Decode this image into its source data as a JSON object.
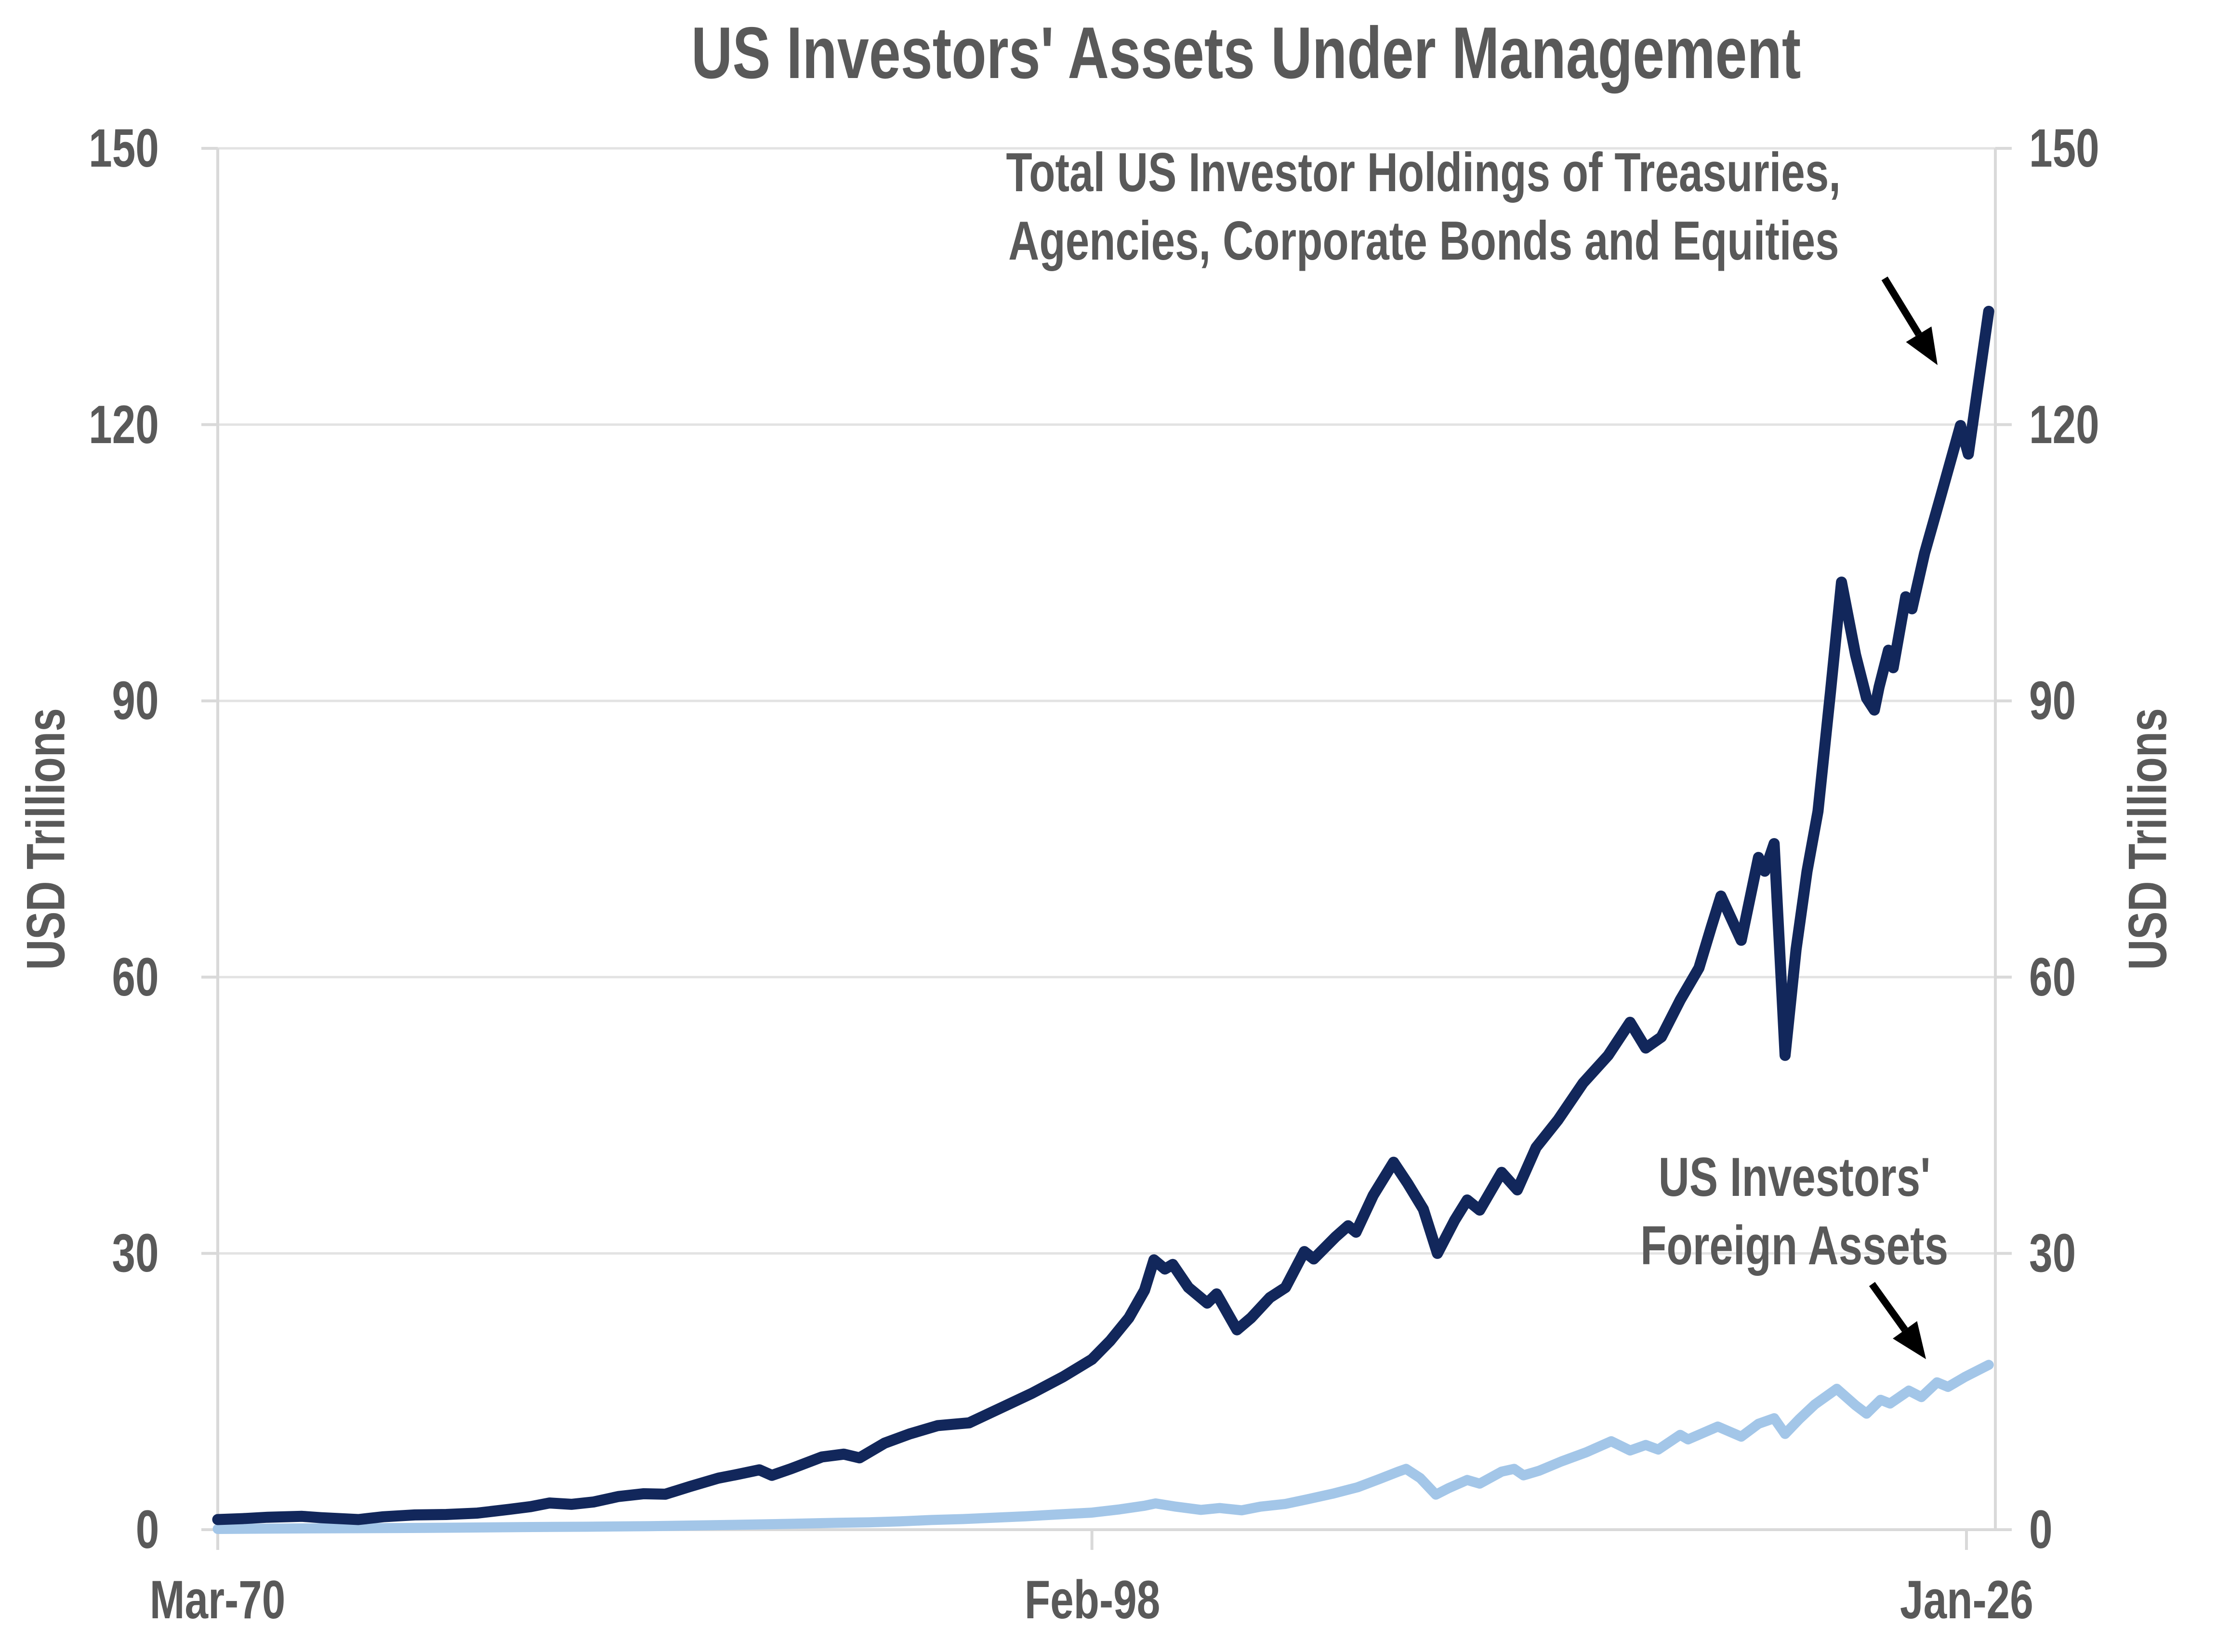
{
  "title": "US Investors' Assets Under Management",
  "axes": {
    "left_title": "USD  Trillions",
    "right_title": "USD  Trillions",
    "y_ticks": [
      0,
      30,
      60,
      90,
      120,
      150
    ],
    "x_ticks": [
      {
        "label": "Mar-70",
        "year": 1970.21
      },
      {
        "label": "Feb-98",
        "year": 1998.12
      },
      {
        "label": "Jan-26",
        "year": 2026.04
      }
    ]
  },
  "annotations": {
    "total_holdings": {
      "line1": "Total US Investor Holdings of Treasuries,",
      "line2": "Agencies, Corporate Bonds and Equities"
    },
    "foreign_assets": {
      "line1": "US Investors'",
      "line2": "Foreign Assets"
    }
  },
  "colors": {
    "total_holdings_line": "#12275b",
    "foreign_assets_line": "#a3c6e8",
    "text": "#595959",
    "gridline": "#e3e3e3",
    "axis": "#d9d9d9",
    "arrow": "#000000",
    "background": "#ffffff"
  },
  "chart_data": {
    "type": "line",
    "title": "US Investors' Assets Under Management",
    "xlabel": "",
    "ylabel": "USD Trillions",
    "ylim": [
      0,
      150
    ],
    "x_range": [
      1970.21,
      2026.96
    ],
    "grid": true,
    "legend_position": "none",
    "series": [
      {
        "name": "Total US Investor Holdings of Treasuries, Agencies, Corporate Bonds and Equities",
        "color": "#12275b",
        "stroke_width": 23,
        "points": [
          [
            1970.21,
            1.1
          ],
          [
            1971.0,
            1.2
          ],
          [
            1971.8,
            1.35
          ],
          [
            1972.9,
            1.45
          ],
          [
            1973.5,
            1.3
          ],
          [
            1974.7,
            1.1
          ],
          [
            1975.5,
            1.4
          ],
          [
            1976.5,
            1.6
          ],
          [
            1977.5,
            1.65
          ],
          [
            1978.5,
            1.8
          ],
          [
            1979.5,
            2.2
          ],
          [
            1980.2,
            2.5
          ],
          [
            1980.8,
            2.9
          ],
          [
            1981.5,
            2.75
          ],
          [
            1982.2,
            3.0
          ],
          [
            1983.0,
            3.6
          ],
          [
            1983.8,
            3.9
          ],
          [
            1984.5,
            3.85
          ],
          [
            1985.3,
            4.7
          ],
          [
            1986.2,
            5.6
          ],
          [
            1986.8,
            6.0
          ],
          [
            1987.5,
            6.5
          ],
          [
            1987.9,
            5.9
          ],
          [
            1988.5,
            6.6
          ],
          [
            1989.5,
            7.9
          ],
          [
            1990.2,
            8.2
          ],
          [
            1990.7,
            7.8
          ],
          [
            1991.5,
            9.4
          ],
          [
            1992.3,
            10.4
          ],
          [
            1993.2,
            11.3
          ],
          [
            1994.2,
            11.6
          ],
          [
            1995.2,
            13.2
          ],
          [
            1996.2,
            14.8
          ],
          [
            1997.2,
            16.6
          ],
          [
            1998.12,
            18.5
          ],
          [
            1998.7,
            20.5
          ],
          [
            1999.3,
            23.0
          ],
          [
            1999.8,
            26.0
          ],
          [
            2000.1,
            29.3
          ],
          [
            2000.45,
            28.3
          ],
          [
            2000.7,
            28.8
          ],
          [
            2001.2,
            26.3
          ],
          [
            2001.8,
            24.6
          ],
          [
            2002.1,
            25.6
          ],
          [
            2002.75,
            21.7
          ],
          [
            2003.2,
            23.0
          ],
          [
            2003.8,
            25.2
          ],
          [
            2004.3,
            26.3
          ],
          [
            2004.9,
            30.2
          ],
          [
            2005.2,
            29.4
          ],
          [
            2005.9,
            31.8
          ],
          [
            2006.3,
            33.0
          ],
          [
            2006.55,
            32.3
          ],
          [
            2007.1,
            36.3
          ],
          [
            2007.75,
            39.9
          ],
          [
            2008.2,
            37.6
          ],
          [
            2008.7,
            34.8
          ],
          [
            2009.15,
            30.0
          ],
          [
            2009.7,
            33.6
          ],
          [
            2010.1,
            35.8
          ],
          [
            2010.5,
            34.7
          ],
          [
            2011.2,
            38.8
          ],
          [
            2011.7,
            36.9
          ],
          [
            2012.3,
            41.5
          ],
          [
            2013.0,
            44.5
          ],
          [
            2013.8,
            48.5
          ],
          [
            2014.6,
            51.5
          ],
          [
            2015.3,
            55.1
          ],
          [
            2015.8,
            52.3
          ],
          [
            2016.3,
            53.5
          ],
          [
            2016.9,
            57.5
          ],
          [
            2017.5,
            61.0
          ],
          [
            2017.9,
            65.5
          ],
          [
            2018.2,
            68.8
          ],
          [
            2018.85,
            64.0
          ],
          [
            2019.4,
            73.0
          ],
          [
            2019.6,
            71.5
          ],
          [
            2019.9,
            74.5
          ],
          [
            2020.25,
            51.5
          ],
          [
            2020.6,
            63.0
          ],
          [
            2020.95,
            71.5
          ],
          [
            2021.3,
            78.0
          ],
          [
            2021.7,
            91.0
          ],
          [
            2022.05,
            102.9
          ],
          [
            2022.5,
            95.0
          ],
          [
            2022.85,
            90.3
          ],
          [
            2023.1,
            89.0
          ],
          [
            2023.25,
            91.5
          ],
          [
            2023.55,
            95.5
          ],
          [
            2023.7,
            93.6
          ],
          [
            2024.1,
            101.3
          ],
          [
            2024.3,
            100.0
          ],
          [
            2024.7,
            106.0
          ],
          [
            2025.2,
            112.0
          ],
          [
            2025.85,
            119.9
          ],
          [
            2026.1,
            116.8
          ],
          [
            2026.75,
            132.3
          ]
        ]
      },
      {
        "name": "US Investors' Foreign Assets",
        "color": "#a3c6e8",
        "stroke_width": 21,
        "points": [
          [
            1970.21,
            0.08
          ],
          [
            1972.0,
            0.12
          ],
          [
            1974.0,
            0.15
          ],
          [
            1976.0,
            0.18
          ],
          [
            1978.0,
            0.22
          ],
          [
            1980.0,
            0.28
          ],
          [
            1982.0,
            0.32
          ],
          [
            1984.0,
            0.38
          ],
          [
            1986.0,
            0.48
          ],
          [
            1988.0,
            0.6
          ],
          [
            1990.0,
            0.75
          ],
          [
            1991.0,
            0.8
          ],
          [
            1992.0,
            0.9
          ],
          [
            1993.0,
            1.05
          ],
          [
            1994.0,
            1.15
          ],
          [
            1995.0,
            1.3
          ],
          [
            1996.0,
            1.45
          ],
          [
            1997.0,
            1.65
          ],
          [
            1998.12,
            1.85
          ],
          [
            1999.0,
            2.2
          ],
          [
            1999.8,
            2.6
          ],
          [
            2000.15,
            2.85
          ],
          [
            2000.8,
            2.5
          ],
          [
            2001.6,
            2.15
          ],
          [
            2002.2,
            2.35
          ],
          [
            2002.9,
            2.1
          ],
          [
            2003.5,
            2.5
          ],
          [
            2004.3,
            2.8
          ],
          [
            2005.0,
            3.3
          ],
          [
            2005.8,
            3.9
          ],
          [
            2006.6,
            4.6
          ],
          [
            2007.3,
            5.5
          ],
          [
            2007.9,
            6.3
          ],
          [
            2008.15,
            6.6
          ],
          [
            2008.6,
            5.6
          ],
          [
            2009.1,
            3.8
          ],
          [
            2009.5,
            4.5
          ],
          [
            2010.1,
            5.4
          ],
          [
            2010.5,
            5.0
          ],
          [
            2011.2,
            6.3
          ],
          [
            2011.6,
            6.6
          ],
          [
            2011.9,
            5.9
          ],
          [
            2012.4,
            6.4
          ],
          [
            2013.1,
            7.4
          ],
          [
            2013.9,
            8.4
          ],
          [
            2014.7,
            9.6
          ],
          [
            2015.3,
            8.6
          ],
          [
            2015.8,
            9.2
          ],
          [
            2016.2,
            8.7
          ],
          [
            2016.9,
            10.3
          ],
          [
            2017.15,
            9.8
          ],
          [
            2018.1,
            11.2
          ],
          [
            2018.85,
            10.1
          ],
          [
            2019.4,
            11.5
          ],
          [
            2019.9,
            12.1
          ],
          [
            2020.25,
            10.4
          ],
          [
            2020.7,
            12.0
          ],
          [
            2021.2,
            13.6
          ],
          [
            2021.9,
            15.3
          ],
          [
            2022.5,
            13.5
          ],
          [
            2022.85,
            12.6
          ],
          [
            2023.3,
            14.1
          ],
          [
            2023.6,
            13.7
          ],
          [
            2024.2,
            15.1
          ],
          [
            2024.6,
            14.4
          ],
          [
            2025.1,
            16.0
          ],
          [
            2025.45,
            15.5
          ],
          [
            2026.0,
            16.6
          ],
          [
            2026.75,
            17.9
          ]
        ]
      }
    ]
  }
}
